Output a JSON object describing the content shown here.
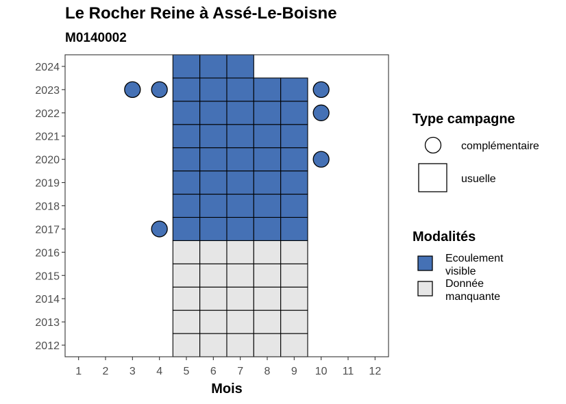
{
  "chart_data": {
    "type": "heatmap",
    "title": "Le Rocher Reine à Assé-Le-Boisne",
    "subtitle": "M0140002",
    "xlabel": "Mois",
    "ylabel": "",
    "x_ticks": [
      "1",
      "2",
      "3",
      "4",
      "5",
      "6",
      "7",
      "8",
      "9",
      "10",
      "11",
      "12"
    ],
    "y_ticks": [
      "2012",
      "2013",
      "2014",
      "2015",
      "2016",
      "2017",
      "2018",
      "2019",
      "2020",
      "2021",
      "2022",
      "2023",
      "2024"
    ],
    "xlim": [
      0.5,
      12.5
    ],
    "ylim": [
      2011.5,
      2024.5
    ],
    "grid": false,
    "legend_position": "right",
    "legend": {
      "type_title": "Type campagne",
      "type_items": [
        {
          "shape": "circle",
          "label": "complémentaire"
        },
        {
          "shape": "square",
          "label": "usuelle"
        }
      ],
      "modalite_title": "Modalités",
      "modalite_items": [
        {
          "color": "#4571b5",
          "label_lines": [
            "Ecoulement",
            "visible"
          ]
        },
        {
          "color": "#e6e6e6",
          "label_lines": [
            "Donnée",
            "manquante"
          ]
        }
      ]
    },
    "colors": {
      "Ecoulement visible": "#4571b5",
      "Donnée manquante": "#e6e6e6"
    },
    "usuelle": [
      {
        "year": 2012,
        "months": [
          5,
          6,
          7,
          8,
          9
        ],
        "modalite": "Donnée manquante"
      },
      {
        "year": 2013,
        "months": [
          5,
          6,
          7,
          8,
          9
        ],
        "modalite": "Donnée manquante"
      },
      {
        "year": 2014,
        "months": [
          5,
          6,
          7,
          8,
          9
        ],
        "modalite": "Donnée manquante"
      },
      {
        "year": 2015,
        "months": [
          5,
          6,
          7,
          8,
          9
        ],
        "modalite": "Donnée manquante"
      },
      {
        "year": 2016,
        "months": [
          5,
          6,
          7,
          8,
          9
        ],
        "modalite": "Donnée manquante"
      },
      {
        "year": 2017,
        "months": [
          5,
          6,
          7,
          8,
          9
        ],
        "modalite": "Ecoulement visible"
      },
      {
        "year": 2018,
        "months": [
          5,
          6,
          7,
          8,
          9
        ],
        "modalite": "Ecoulement visible"
      },
      {
        "year": 2019,
        "months": [
          5,
          6,
          7,
          8,
          9
        ],
        "modalite": "Ecoulement visible"
      },
      {
        "year": 2020,
        "months": [
          5,
          6,
          7,
          8,
          9
        ],
        "modalite": "Ecoulement visible"
      },
      {
        "year": 2021,
        "months": [
          5,
          6,
          7,
          8,
          9
        ],
        "modalite": "Ecoulement visible"
      },
      {
        "year": 2022,
        "months": [
          5,
          6,
          7,
          8,
          9
        ],
        "modalite": "Ecoulement visible"
      },
      {
        "year": 2023,
        "months": [
          5,
          6,
          7,
          8,
          9
        ],
        "modalite": "Ecoulement visible"
      },
      {
        "year": 2024,
        "months": [
          5,
          6,
          7
        ],
        "modalite": "Ecoulement visible"
      }
    ],
    "complementaire": [
      {
        "year": 2023,
        "month": 3,
        "modalite": "Ecoulement visible"
      },
      {
        "year": 2023,
        "month": 4,
        "modalite": "Ecoulement visible"
      },
      {
        "year": 2023,
        "month": 10,
        "modalite": "Ecoulement visible"
      },
      {
        "year": 2022,
        "month": 10,
        "modalite": "Ecoulement visible"
      },
      {
        "year": 2020,
        "month": 10,
        "modalite": "Ecoulement visible"
      },
      {
        "year": 2017,
        "month": 4,
        "modalite": "Ecoulement visible"
      }
    ]
  }
}
